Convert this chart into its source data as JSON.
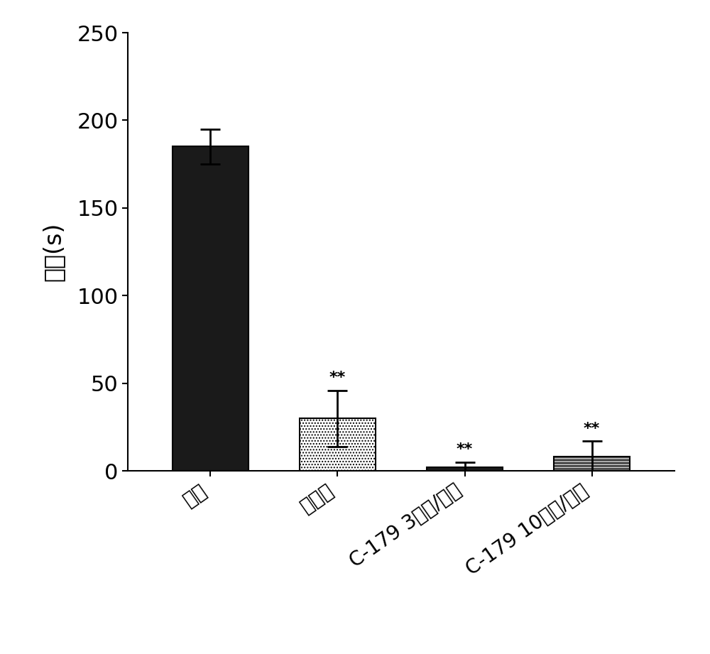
{
  "categories": [
    "媒剂",
    "丙咪嗪",
    "C-179 3毫克/公斤",
    "C-179 10毫克/公斤"
  ],
  "values": [
    185,
    30,
    2,
    8
  ],
  "errors": [
    10,
    16,
    3,
    9
  ],
  "ylabel": "不动(s)",
  "ylim": [
    0,
    250
  ],
  "yticks": [
    0,
    50,
    100,
    150,
    200,
    250
  ],
  "sig_text": "**",
  "background_color": "#ffffff",
  "bar_width": 0.6,
  "figsize": [
    10.0,
    9.21
  ],
  "dpi": 100,
  "ylabel_fontsize": 24,
  "tick_fontsize": 22,
  "xlabel_fontsize": 20,
  "sig_fontsize": 16
}
